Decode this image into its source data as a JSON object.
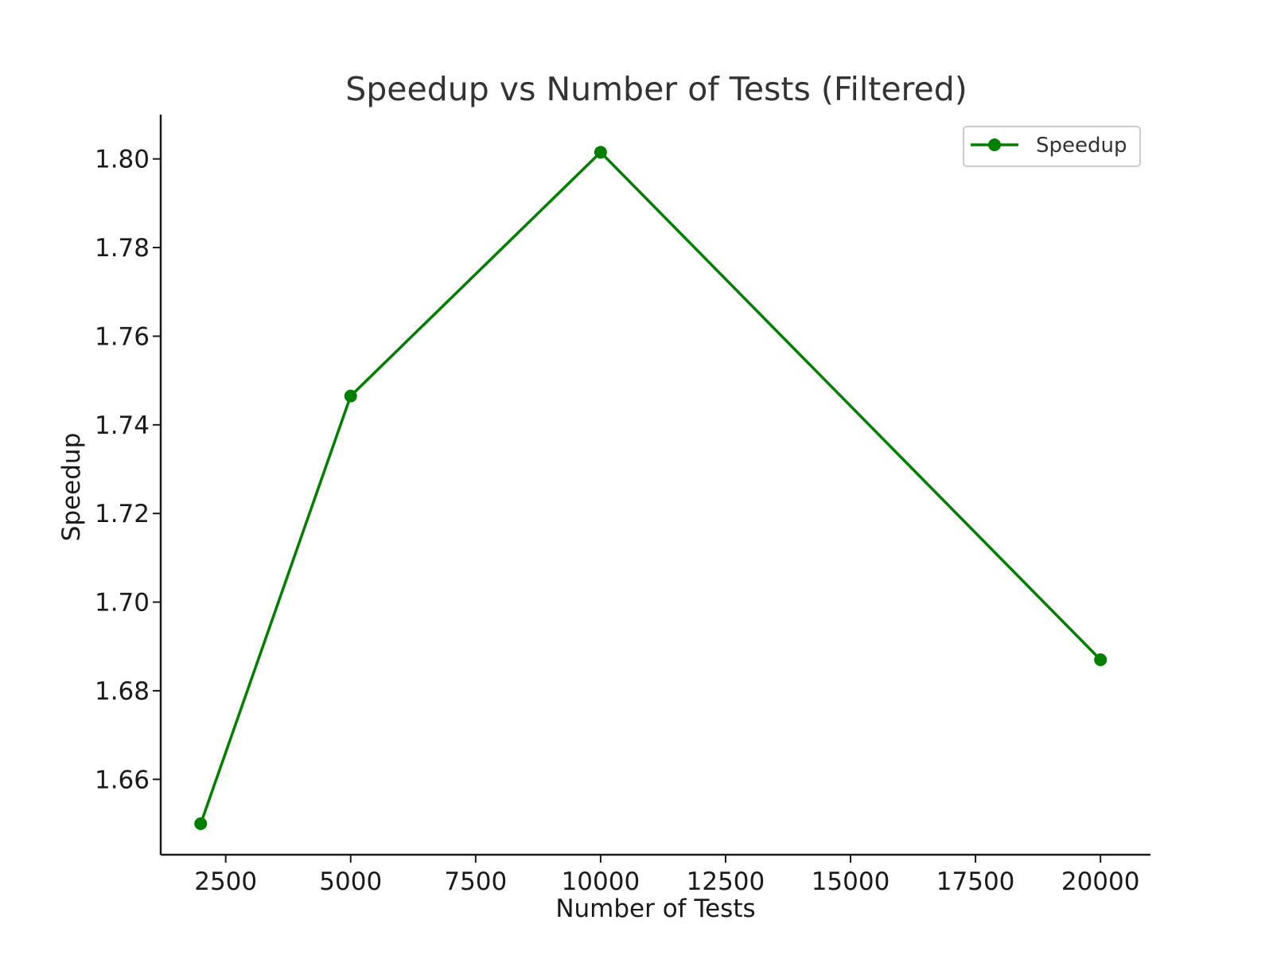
{
  "chart_data": {
    "type": "line",
    "title": "Speedup vs Number of Tests (Filtered)",
    "xlabel": "Number of Tests",
    "ylabel": "Speedup",
    "xlim": [
      1200,
      21000
    ],
    "ylim": [
      1.643,
      1.81
    ],
    "xticks": [
      2500,
      5000,
      7500,
      10000,
      12500,
      15000,
      17500,
      20000
    ],
    "xtick_labels": [
      "2500",
      "5000",
      "7500",
      "10000",
      "12500",
      "15000",
      "17500",
      "20000"
    ],
    "yticks": [
      1.66,
      1.68,
      1.7,
      1.72,
      1.74,
      1.76,
      1.78,
      1.8
    ],
    "ytick_labels": [
      "1.66",
      "1.68",
      "1.70",
      "1.72",
      "1.74",
      "1.76",
      "1.78",
      "1.80"
    ],
    "grid": false,
    "legend_position": "top-right",
    "series": [
      {
        "name": "Speedup",
        "color": "#007f00",
        "marker": "circle",
        "x": [
          2000,
          5000,
          10000,
          20000
        ],
        "y": [
          1.65,
          1.7465,
          1.8015,
          1.687
        ]
      }
    ]
  }
}
